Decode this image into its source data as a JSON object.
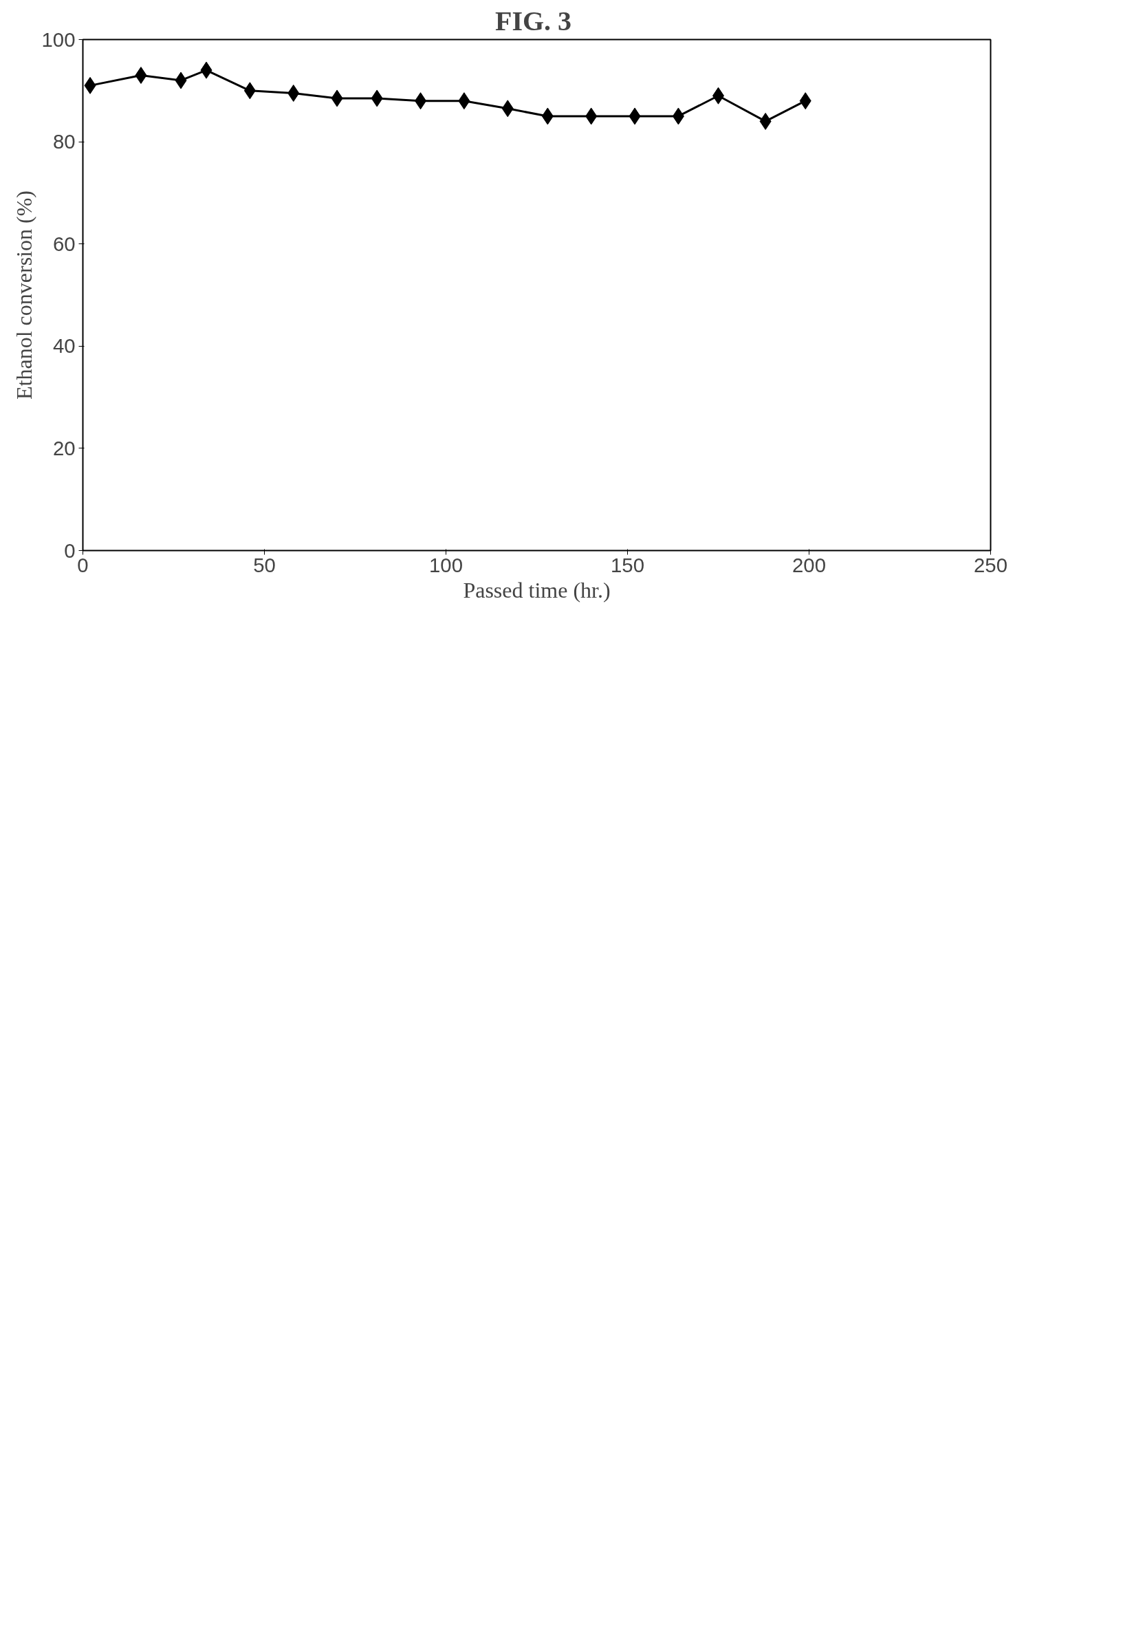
{
  "chart_data": {
    "type": "line",
    "title": "FIG.  3",
    "xlabel": "Passed time (hr.)",
    "ylabel": "Ethanol conversion (%)",
    "x": [
      2,
      16,
      27,
      34,
      46,
      58,
      70,
      81,
      93,
      105,
      117,
      128,
      140,
      152,
      164,
      175,
      188,
      199
    ],
    "series": [
      {
        "color": "#000000",
        "values": [
          91,
          93,
          92,
          94,
          90,
          89.5,
          88.5,
          88.5,
          88,
          88,
          86.5,
          85,
          85,
          85,
          85,
          89,
          84,
          88
        ]
      }
    ],
    "xlim": [
      0,
      250
    ],
    "xticks": [
      0,
      50,
      100,
      150,
      200,
      250
    ],
    "ylim": [
      0,
      100
    ],
    "yticks": [
      0,
      20,
      40,
      60,
      80,
      100
    ],
    "grid": false,
    "marker": "diamond",
    "line_style": "solid"
  }
}
